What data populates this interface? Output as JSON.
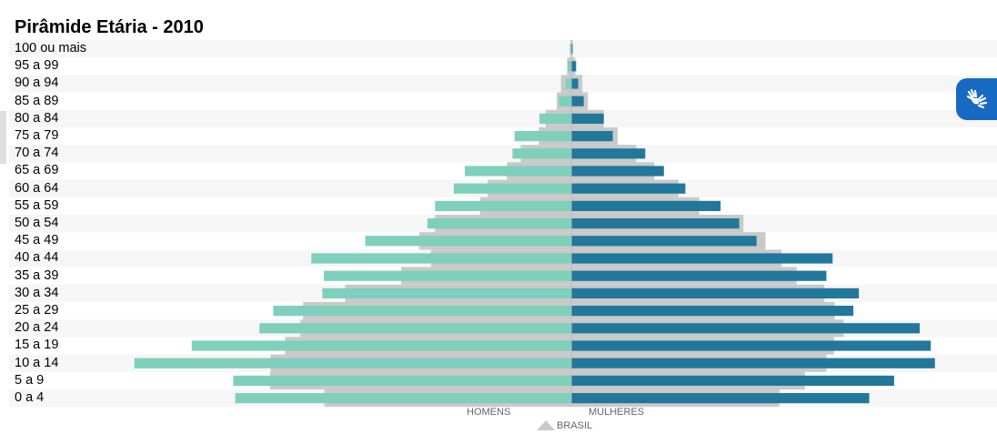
{
  "chart_data": {
    "type": "bar",
    "title": "Pirâmide Etária - 2010",
    "categories": [
      "100 ou mais",
      "95 a 99",
      "90 a 94",
      "85 a 89",
      "80 a 84",
      "75 a 79",
      "70 a 74",
      "65 a 69",
      "60 a 64",
      "55 a 59",
      "50 a 54",
      "45 a 49",
      "40 a 44",
      "35 a 39",
      "30 a 34",
      "25 a 29",
      "20 a 24",
      "15 a 19",
      "10 a 14",
      "5 a 9",
      "0 a 4"
    ],
    "x_unit_note": "",
    "series": [
      {
        "name": "HOMENS",
        "side": "left",
        "color": "#7ecfbc",
        "values": [
          0.2,
          0.5,
          0.8,
          1.8,
          4.6,
          8.2,
          8.5,
          15.4,
          17.0,
          19.7,
          20.8,
          29.8,
          37.6,
          35.8,
          36.0,
          43.1,
          45.1,
          54.9,
          63.2,
          48.9,
          48.6
        ]
      },
      {
        "name": "MULHERES",
        "side": "right",
        "color": "#21789b",
        "values": [
          0.2,
          0.7,
          1.0,
          1.8,
          4.7,
          6.0,
          10.7,
          13.4,
          16.5,
          21.6,
          24.3,
          26.8,
          37.8,
          36.9,
          41.6,
          40.8,
          50.4,
          52.0,
          52.6,
          46.7,
          43.1
        ]
      },
      {
        "name": "BRASIL",
        "side": "both",
        "color": "#c9c9c9",
        "values_left": [
          0.1,
          0.6,
          1.5,
          2.1,
          3.7,
          4.7,
          7.3,
          9.3,
          12.1,
          13.2,
          19.7,
          22.0,
          20.3,
          24.6,
          32.7,
          38.8,
          39.2,
          41.4,
          43.5,
          43.6,
          35.7
        ],
        "values_right": [
          0.2,
          0.6,
          1.6,
          2.4,
          4.7,
          6.7,
          9.4,
          12.0,
          15.5,
          18.5,
          24.9,
          28.1,
          30.4,
          32.6,
          36.6,
          38.1,
          39.4,
          38.0,
          36.9,
          33.8,
          30.1
        ]
      }
    ],
    "xlim": [
      0,
      64
    ],
    "legend": {
      "left_label": "HOMENS",
      "right_label": "MULHERES",
      "bottom_label": "BRASIL",
      "placement": "bottom"
    }
  },
  "accessibility": {
    "icon": "sign-language-icon",
    "color": "#1769c2"
  }
}
